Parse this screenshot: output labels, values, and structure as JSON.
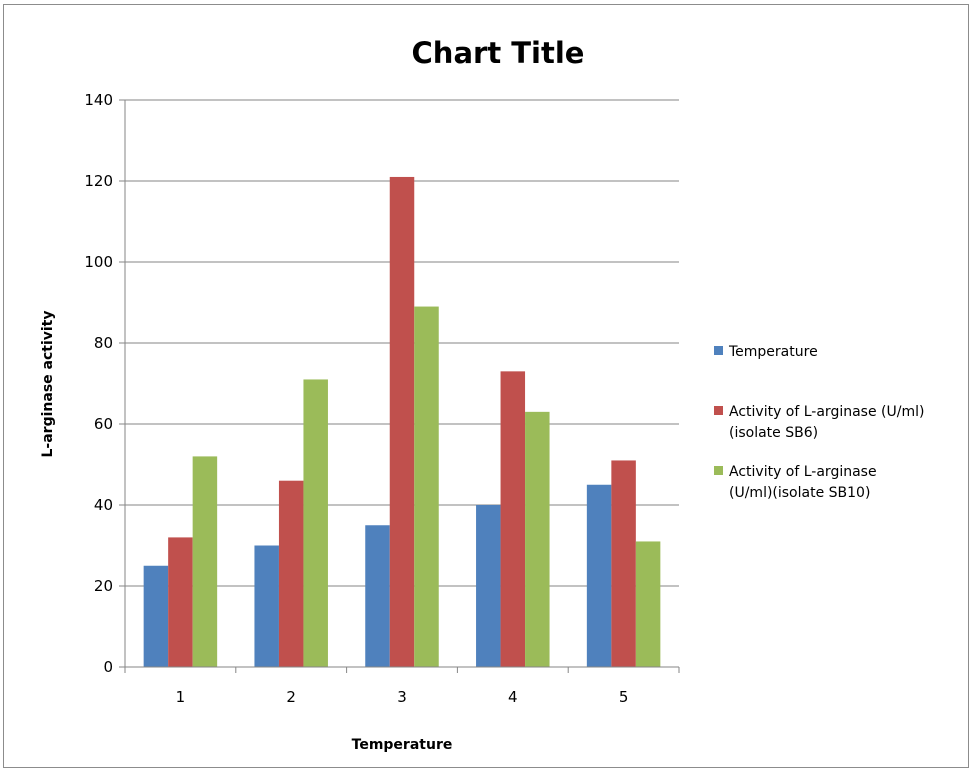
{
  "chart_data": {
    "type": "bar",
    "title": "Chart Title",
    "xlabel": "Temperature",
    "ylabel": "L-arginase activity",
    "categories": [
      "1",
      "2",
      "3",
      "4",
      "5"
    ],
    "series": [
      {
        "name": "Temperature",
        "legend_lines": [
          "Temperature"
        ],
        "color": "#4f81bd",
        "values": [
          25,
          30,
          35,
          40,
          45
        ]
      },
      {
        "name": "Activity of L-arginase (U/ml) (isolate SB6)",
        "legend_lines": [
          "Activity of L-arginase (U/ml)",
          "(isolate SB6)"
        ],
        "color": "#c0504d",
        "values": [
          32,
          46,
          121,
          73,
          51
        ]
      },
      {
        "name": "Activity of L-arginase (U/ml)(isolate SB10)",
        "legend_lines": [
          "Activity of L-arginase",
          "(U/ml)(isolate SB10)"
        ],
        "color": "#9bbb59",
        "values": [
          52,
          71,
          89,
          63,
          31
        ]
      }
    ],
    "ylim": [
      0,
      140
    ],
    "yticks": [
      0,
      20,
      40,
      60,
      80,
      100,
      120,
      140
    ],
    "grid": true,
    "legend_position": "right"
  }
}
